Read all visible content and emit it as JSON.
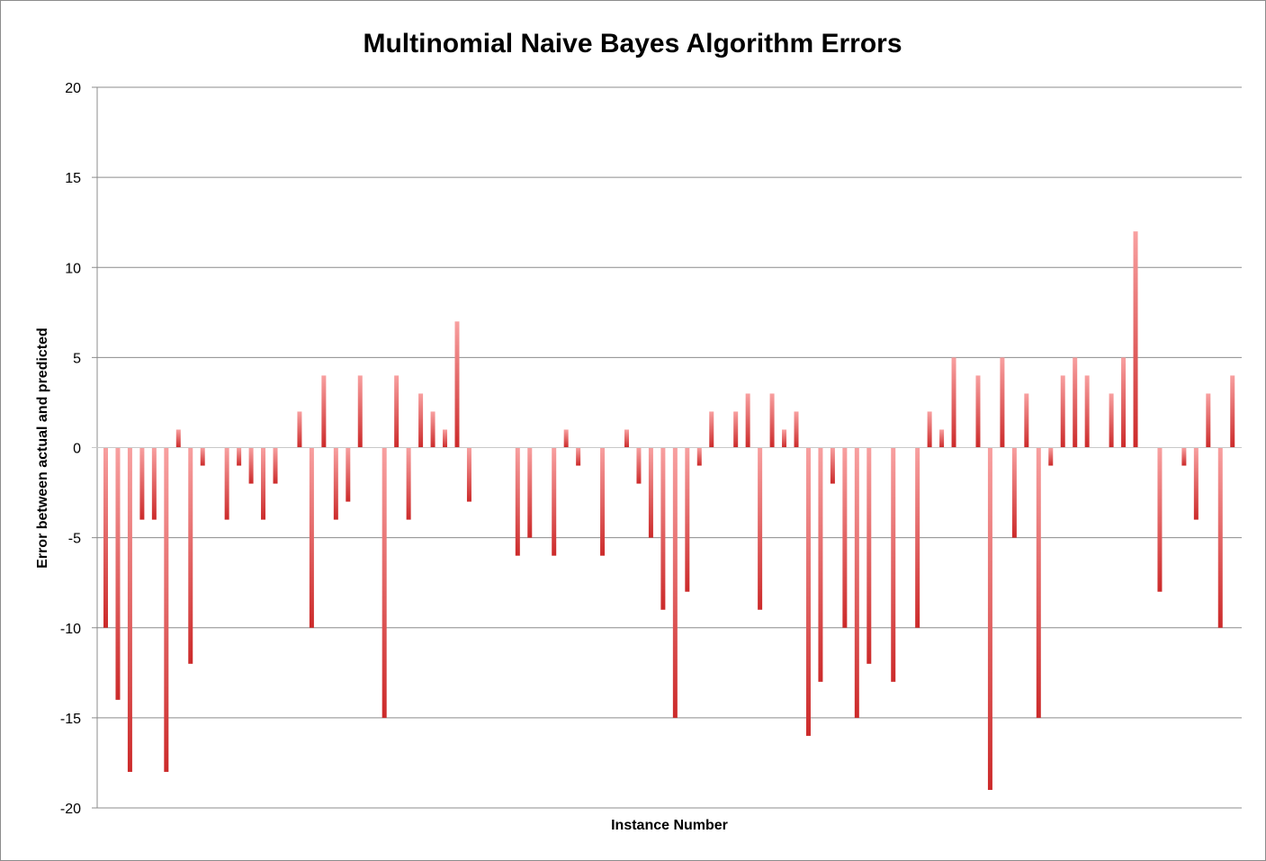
{
  "chart_data": {
    "type": "bar",
    "title": "Multinomial Naive Bayes Algorithm Errors",
    "xlabel": "Instance Number",
    "ylabel": "Error between actual and predicted",
    "ylim": [
      -20,
      20
    ],
    "yticks": [
      "20",
      "15",
      "10",
      "5",
      "0",
      "-5",
      "-10",
      "-15",
      "-20"
    ],
    "grid": "horizontal",
    "legend": "none",
    "bar_color_top": "#f8a0a0",
    "bar_color_bottom": "#cc2a2a",
    "series": [
      {
        "values": [
          -10,
          -14,
          -18,
          -4,
          -4,
          -18,
          1,
          -12,
          -1,
          0,
          -4,
          -1,
          -2,
          -4,
          -2,
          0,
          2,
          -10,
          4,
          -4,
          -3,
          4,
          0,
          -15,
          4,
          -4,
          3,
          2,
          1,
          7,
          -3,
          0,
          0,
          0,
          -6,
          -5,
          0,
          -6,
          1,
          -1,
          0,
          -6,
          0,
          1,
          -2,
          -5,
          -9,
          -15,
          -8,
          -1,
          2,
          0,
          2,
          3,
          -9,
          3,
          1,
          2,
          -16,
          -13,
          -2,
          -10,
          -15,
          -12,
          0,
          -13,
          0,
          -10,
          2,
          1,
          5,
          0,
          4,
          -19,
          5,
          -5,
          3,
          -15,
          -1,
          4,
          5,
          4,
          0,
          3,
          5,
          12,
          0,
          -8,
          0,
          -1,
          -4,
          3,
          -10,
          4
        ]
      }
    ]
  }
}
